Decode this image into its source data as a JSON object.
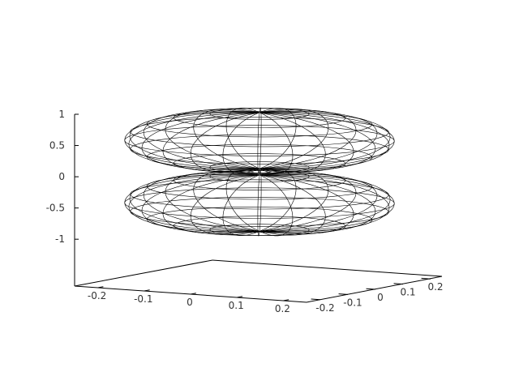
{
  "chart_data": {
    "type": "surface3d",
    "title": "",
    "xlabel": "",
    "ylabel": "",
    "zlabel": "",
    "grid": false,
    "legend": "none",
    "xlim": [
      -0.25,
      0.25
    ],
    "ylim": [
      -0.25,
      0.25
    ],
    "zlim": [
      -1.75,
      1
    ],
    "x_ticks": [
      {
        "value": -0.2,
        "label": "-0.2"
      },
      {
        "value": -0.1,
        "label": "-0.1"
      },
      {
        "value": 0,
        "label": "0"
      },
      {
        "value": 0.1,
        "label": "0.1"
      },
      {
        "value": 0.2,
        "label": "0.2"
      }
    ],
    "y_ticks": [
      {
        "value": -0.2,
        "label": "-0.2"
      },
      {
        "value": -0.1,
        "label": "-0.1"
      },
      {
        "value": 0,
        "label": "0"
      },
      {
        "value": 0.1,
        "label": "0.1"
      },
      {
        "value": 0.2,
        "label": "0.2"
      }
    ],
    "z_ticks": [
      {
        "value": 1,
        "label": "1"
      },
      {
        "value": 0.5,
        "label": "0.5"
      },
      {
        "value": 0,
        "label": "0"
      },
      {
        "value": -0.5,
        "label": "-0.5"
      },
      {
        "value": -1,
        "label": "-1"
      }
    ],
    "surface": {
      "shape": "two flattened lobes (dipole-like), mirrored about z = 0",
      "max_radius": 0.25,
      "z_range": [
        -0.95,
        0.95
      ],
      "lobe_peak_z": 0.5,
      "meridians": 24,
      "parallels": 10,
      "line_color": "#000000"
    }
  }
}
